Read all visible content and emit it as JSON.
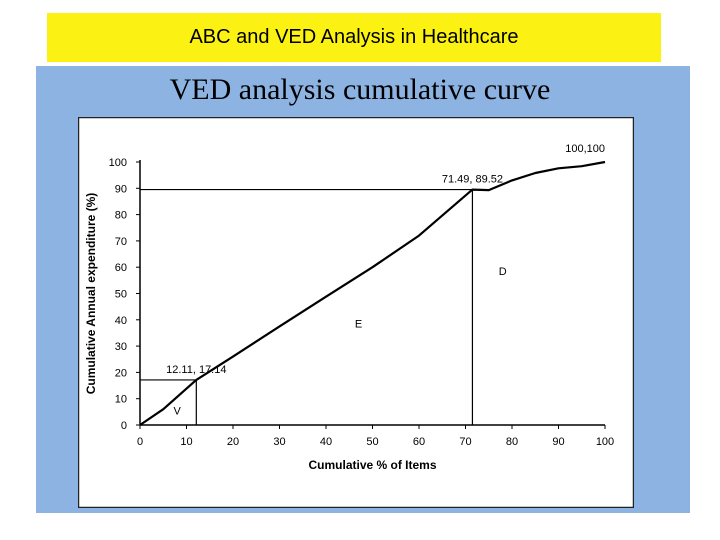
{
  "header": {
    "title": "ABC and VED Analysis in Healthcare"
  },
  "slide": {
    "subtitle": "VED analysis cumulative curve"
  },
  "chart_data": {
    "type": "line",
    "title": "",
    "xlabel": "Cumulative % of Items",
    "ylabel": "Cumulative Annual expenditure (%)",
    "xlim": [
      0,
      100
    ],
    "ylim": [
      0,
      100
    ],
    "xticks": [
      0,
      10,
      20,
      30,
      40,
      50,
      60,
      70,
      80,
      90,
      100
    ],
    "yticks": [
      0,
      10,
      20,
      30,
      40,
      50,
      60,
      70,
      80,
      90,
      100
    ],
    "grid": false,
    "series": [
      {
        "values": [
          [
            0,
            0
          ],
          [
            5,
            6
          ],
          [
            12.11,
            17.14
          ],
          [
            20,
            26
          ],
          [
            30,
            37.5
          ],
          [
            40,
            48.8
          ],
          [
            50,
            60
          ],
          [
            60,
            72
          ],
          [
            71.49,
            89.52
          ],
          [
            75,
            89.3
          ],
          [
            80,
            93
          ],
          [
            85,
            95.8
          ],
          [
            90,
            97.6
          ],
          [
            95,
            98.4
          ],
          [
            100,
            100
          ]
        ]
      }
    ],
    "reference_lines": [
      {
        "x": 12.11,
        "y": 17.14
      },
      {
        "x": 71.49,
        "y": 89.52
      }
    ],
    "annotations": [
      {
        "text": "12.11, 17.14",
        "x": 12.11,
        "y": 17.14
      },
      {
        "text": "71.49, 89.52",
        "x": 71.49,
        "y": 89.52
      },
      {
        "text": "100,100",
        "x": 100,
        "y": 100
      }
    ],
    "region_labels": [
      {
        "text": "V",
        "x": 8,
        "y": 4
      },
      {
        "text": "E",
        "x": 47,
        "y": 37
      },
      {
        "text": "D",
        "x": 78,
        "y": 57
      }
    ]
  }
}
